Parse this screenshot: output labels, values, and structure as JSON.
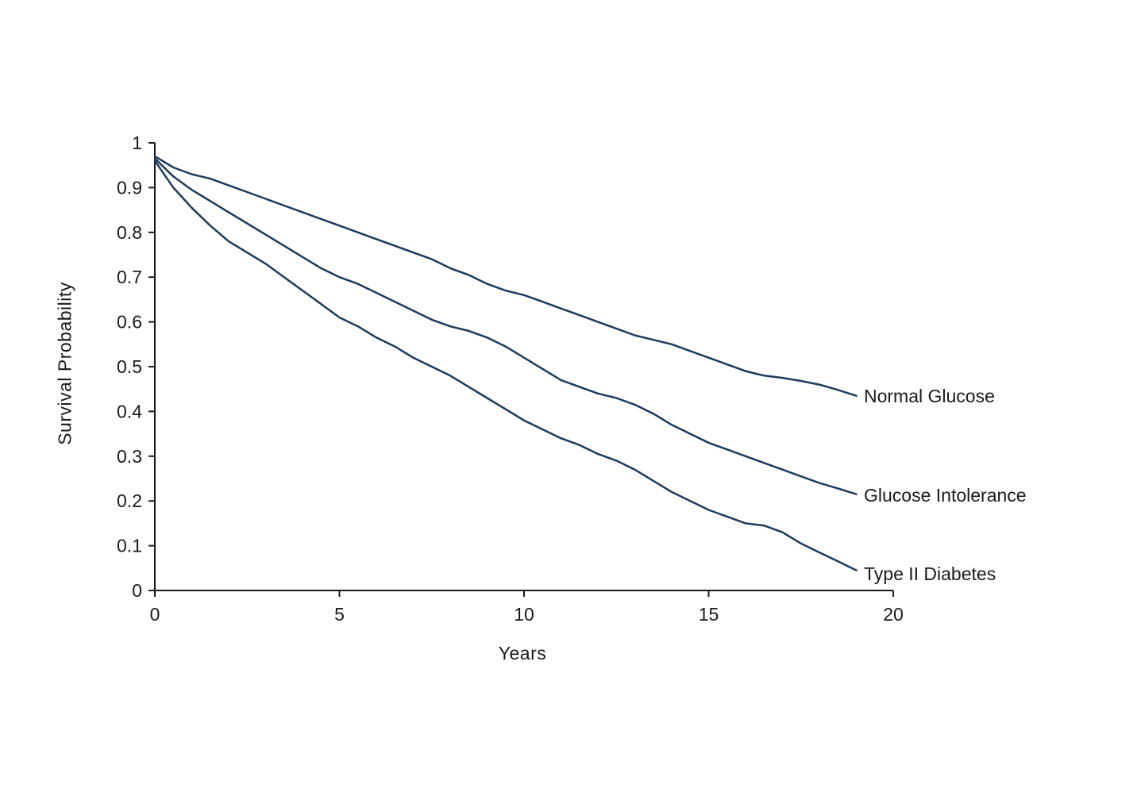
{
  "chart_data": {
    "type": "line",
    "title": "",
    "xlabel": "Years",
    "ylabel": "Survival Probability",
    "xlim": [
      0,
      20
    ],
    "ylim": [
      0,
      1
    ],
    "grid": false,
    "legend_position": "right-of-line-ends",
    "axis_color": "#1a1a1a",
    "line_color": "#1f3a5c",
    "x_ticks": [
      0,
      5,
      10,
      15,
      20
    ],
    "x_tick_labels": [
      "0",
      "5",
      "10",
      "15",
      "20"
    ],
    "y_ticks": [
      0,
      0.1,
      0.2,
      0.3,
      0.4,
      0.5,
      0.6,
      0.7,
      0.8,
      0.9,
      1
    ],
    "y_tick_labels": [
      "0",
      "0.1",
      "0.2",
      "0.3",
      "0.4",
      "0.5",
      "0.6",
      "0.7",
      "0.8",
      "0.9",
      "1"
    ],
    "x": [
      0,
      0.5,
      1,
      1.5,
      2,
      2.5,
      3,
      3.5,
      4,
      4.5,
      5,
      5.5,
      6,
      6.5,
      7,
      7.5,
      8,
      8.5,
      9,
      9.5,
      10,
      10.5,
      11,
      11.5,
      12,
      12.5,
      13,
      13.5,
      14,
      14.5,
      15,
      15.5,
      16,
      16.5,
      17,
      17.5,
      18,
      18.5,
      19
    ],
    "series": [
      {
        "name": "Normal Glucose",
        "values": [
          0.97,
          0.945,
          0.93,
          0.92,
          0.905,
          0.89,
          0.875,
          0.86,
          0.845,
          0.83,
          0.815,
          0.8,
          0.785,
          0.77,
          0.755,
          0.74,
          0.72,
          0.705,
          0.685,
          0.67,
          0.66,
          0.645,
          0.63,
          0.615,
          0.6,
          0.585,
          0.57,
          0.56,
          0.55,
          0.535,
          0.52,
          0.505,
          0.49,
          0.48,
          0.475,
          0.468,
          0.46,
          0.448,
          0.435
        ]
      },
      {
        "name": "Glucose Intolerance",
        "values": [
          0.965,
          0.925,
          0.895,
          0.87,
          0.845,
          0.82,
          0.795,
          0.77,
          0.745,
          0.72,
          0.7,
          0.685,
          0.665,
          0.645,
          0.625,
          0.605,
          0.59,
          0.58,
          0.565,
          0.545,
          0.52,
          0.495,
          0.47,
          0.455,
          0.44,
          0.43,
          0.415,
          0.395,
          0.37,
          0.35,
          0.33,
          0.315,
          0.3,
          0.285,
          0.27,
          0.255,
          0.24,
          0.228,
          0.215
        ]
      },
      {
        "name": "Type II Diabetes",
        "values": [
          0.96,
          0.9,
          0.855,
          0.815,
          0.78,
          0.755,
          0.73,
          0.7,
          0.67,
          0.64,
          0.61,
          0.59,
          0.565,
          0.545,
          0.52,
          0.5,
          0.48,
          0.455,
          0.43,
          0.405,
          0.38,
          0.36,
          0.34,
          0.325,
          0.305,
          0.29,
          0.27,
          0.245,
          0.22,
          0.2,
          0.18,
          0.165,
          0.15,
          0.145,
          0.13,
          0.105,
          0.085,
          0.065,
          0.045
        ]
      }
    ]
  }
}
